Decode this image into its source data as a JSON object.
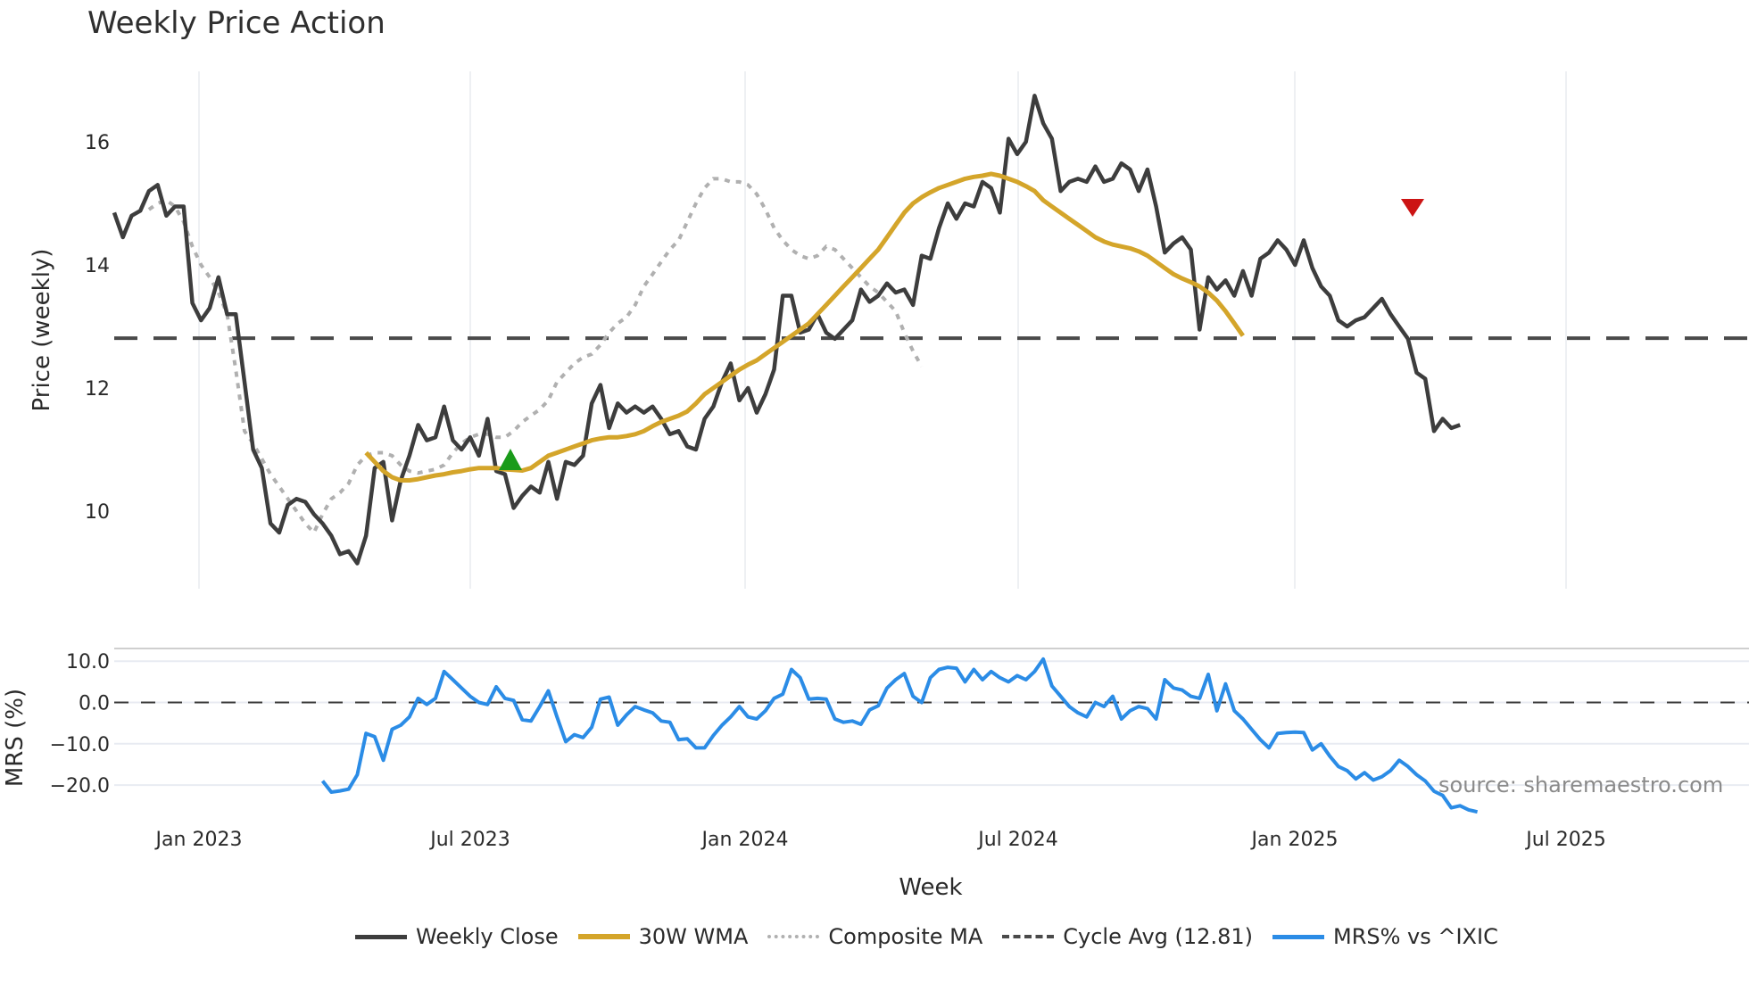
{
  "title": "Weekly Price Action",
  "source": "source: sharemaestro.com",
  "colors": {
    "close": "#3d3d3d",
    "wma": "#d4a52a",
    "composite": "#b0b0b0",
    "cycle": "#4a4a4a",
    "mrs": "#2b8ce6",
    "buy": "#1a9b1a",
    "sell": "#cc1414"
  },
  "axes": {
    "price_label": "Price (weekly)",
    "mrs_label": "MRS (%)",
    "x_label": "Week",
    "price_ticks": [
      "16",
      "14",
      "12",
      "10"
    ],
    "mrs_ticks": [
      "10.0",
      "0.0",
      "−10.0",
      "−20.0"
    ],
    "x_ticks": [
      "Jan 2023",
      "Jul 2023",
      "Jan 2024",
      "Jul 2024",
      "Jan 2025",
      "Jul 2025"
    ]
  },
  "legend": [
    {
      "label": "Weekly Close",
      "style": "solid",
      "color": "#3d3d3d"
    },
    {
      "label": "30W WMA",
      "style": "solid",
      "color": "#d4a52a"
    },
    {
      "label": "Composite MA",
      "style": "dotted",
      "color": "#b0b0b0"
    },
    {
      "label": "Cycle Avg (12.81)",
      "style": "dashed",
      "color": "#4a4a4a"
    },
    {
      "label": "MRS% vs ^IXIC",
      "style": "solid",
      "color": "#2b8ce6"
    }
  ],
  "chart_data": [
    {
      "type": "line",
      "title": "Weekly Price Action",
      "xlabel": "Week",
      "ylabel": "Price (weekly)",
      "ylim": [
        8.8,
        17.2
      ],
      "x_ticks": [
        "Jan 2023",
        "Jul 2023",
        "Jan 2024",
        "Jul 2024",
        "Jan 2025",
        "Jul 2025"
      ],
      "grid": true,
      "legend_position": "bottom",
      "series": [
        {
          "name": "Weekly Close",
          "x_start": "2022-11",
          "values": [
            14.85,
            14.45,
            14.8,
            14.88,
            15.2,
            15.3,
            14.8,
            14.95,
            14.95,
            13.38,
            13.1,
            13.3,
            13.8,
            13.2,
            13.2,
            12.1,
            11.0,
            10.7,
            9.8,
            9.65,
            10.1,
            10.2,
            10.15,
            9.95,
            9.8,
            9.6,
            9.3,
            9.35,
            9.15,
            9.6,
            10.7,
            10.8,
            9.85,
            10.5,
            10.9,
            11.4,
            11.15,
            11.2,
            11.7,
            11.15,
            11.0,
            11.2,
            10.9,
            11.5,
            10.65,
            10.6,
            10.05,
            10.25,
            10.4,
            10.3,
            10.8,
            10.2,
            10.8,
            10.75,
            10.9,
            11.75,
            12.05,
            11.35,
            11.75,
            11.6,
            11.7,
            11.6,
            11.7,
            11.5,
            11.25,
            11.3,
            11.05,
            11.0,
            11.5,
            11.7,
            12.1,
            12.4,
            11.8,
            12.0,
            11.6,
            11.9,
            12.3,
            13.5,
            13.5,
            12.9,
            12.95,
            13.2,
            12.9,
            12.8,
            12.95,
            13.1,
            13.6,
            13.4,
            13.5,
            13.7,
            13.55,
            13.6,
            13.35,
            14.15,
            14.1,
            14.6,
            15.0,
            14.75,
            15.0,
            14.95,
            15.35,
            15.25,
            14.85,
            16.05,
            15.8,
            16.0,
            16.75,
            16.3,
            16.05,
            15.2,
            15.35,
            15.4,
            15.35,
            15.6,
            15.35,
            15.4,
            15.65,
            15.55,
            15.2,
            15.55,
            14.95,
            14.2,
            14.35,
            14.45,
            14.25,
            12.95,
            13.8,
            13.6,
            13.75,
            13.5,
            13.9,
            13.5,
            14.1,
            14.2,
            14.4,
            14.25,
            14.0,
            14.4,
            13.95,
            13.65,
            13.5,
            13.1,
            13.0,
            13.1,
            13.15,
            13.3,
            13.45,
            13.2,
            13.0,
            12.8,
            12.25,
            12.15,
            11.3,
            11.5,
            11.35,
            11.4
          ]
        },
        {
          "name": "30W WMA",
          "values_start_week": 29,
          "values": [
            10.95,
            10.8,
            10.65,
            10.55,
            10.5,
            10.5,
            10.52,
            10.55,
            10.58,
            10.6,
            10.63,
            10.65,
            10.68,
            10.7,
            10.7,
            10.7,
            10.68,
            10.67,
            10.66,
            10.7,
            10.8,
            10.9,
            10.95,
            11.0,
            11.05,
            11.1,
            11.15,
            11.18,
            11.2,
            11.2,
            11.22,
            11.25,
            11.3,
            11.38,
            11.45,
            11.5,
            11.55,
            11.62,
            11.75,
            11.9,
            12.0,
            12.1,
            12.2,
            12.3,
            12.38,
            12.45,
            12.55,
            12.65,
            12.75,
            12.85,
            12.95,
            13.05,
            13.2,
            13.35,
            13.5,
            13.65,
            13.8,
            13.95,
            14.1,
            14.25,
            14.45,
            14.65,
            14.85,
            15.0,
            15.1,
            15.18,
            15.25,
            15.3,
            15.35,
            15.4,
            15.43,
            15.45,
            15.48,
            15.45,
            15.4,
            15.35,
            15.28,
            15.2,
            15.05,
            14.95,
            14.85,
            14.75,
            14.65,
            14.55,
            14.45,
            14.38,
            14.33,
            14.3,
            14.27,
            14.22,
            14.15,
            14.05,
            13.95,
            13.85,
            13.78,
            13.72,
            13.65,
            13.55,
            13.42,
            13.25,
            13.05,
            12.85
          ]
        },
        {
          "name": "Composite MA",
          "values": [
            14.9,
            15.0,
            15.05,
            14.95,
            14.7,
            14.3,
            14.0,
            13.8,
            13.55,
            13.2,
            12.3,
            11.3,
            11.1,
            10.85,
            10.6,
            10.4,
            10.2,
            10.0,
            9.8,
            9.65,
            9.95,
            10.2,
            10.3,
            10.45,
            10.75,
            10.9,
            10.95,
            10.95,
            10.9,
            10.75,
            10.65,
            10.62,
            10.65,
            10.68,
            10.75,
            10.95,
            11.1,
            11.2,
            11.25,
            11.25,
            11.2,
            11.2,
            11.3,
            11.45,
            11.55,
            11.65,
            11.8,
            12.1,
            12.25,
            12.4,
            12.5,
            12.55,
            12.7,
            12.9,
            13.05,
            13.15,
            13.35,
            13.65,
            13.85,
            14.05,
            14.25,
            14.4,
            14.7,
            15.0,
            15.25,
            15.4,
            15.4,
            15.35,
            15.35,
            15.3,
            15.15,
            14.9,
            14.6,
            14.4,
            14.25,
            14.15,
            14.1,
            14.15,
            14.3,
            14.25,
            14.1,
            13.95,
            13.8,
            13.65,
            13.55,
            13.4,
            13.25,
            12.9,
            12.6,
            12.35
          ]
        },
        {
          "name": "Cycle Avg (12.81)",
          "values": [
            12.81
          ]
        }
      ],
      "markers": [
        {
          "type": "buy",
          "shape": "triangle-up",
          "x": "2023-08",
          "y": 10.8,
          "color": "#1a9b1a"
        },
        {
          "type": "sell",
          "shape": "triangle-down",
          "x": "2025-04",
          "y": 14.9,
          "color": "#cc1414"
        }
      ]
    },
    {
      "type": "line",
      "ylabel": "MRS (%)",
      "ylim": [
        -26,
        13
      ],
      "y_ticks": [
        10,
        0,
        -10,
        -20
      ],
      "series": [
        {
          "name": "MRS% vs ^IXIC",
          "x_start": "2023-05",
          "values": [
            -19.0,
            -21.7,
            -21.4,
            -21.0,
            -17.5,
            -7.5,
            -8.3,
            -14.0,
            -6.5,
            -5.5,
            -3.5,
            1.0,
            -0.5,
            1.0,
            7.5,
            5.5,
            3.5,
            1.5,
            0.0,
            -0.5,
            3.8,
            1.0,
            0.5,
            -4.2,
            -4.5,
            -1.0,
            2.8,
            -3.5,
            -9.5,
            -7.8,
            -8.5,
            -6.0,
            0.8,
            1.3,
            -5.5,
            -3.0,
            -1.0,
            -1.8,
            -2.5,
            -4.5,
            -4.8,
            -9.0,
            -8.8,
            -11.0,
            -11.0,
            -8.0,
            -5.5,
            -3.5,
            -1.0,
            -3.5,
            -4.0,
            -2.0,
            1.0,
            2.0,
            8.0,
            6.0,
            0.8,
            1.0,
            0.8,
            -4.0,
            -4.8,
            -4.5,
            -5.3,
            -1.8,
            -0.8,
            3.5,
            5.5,
            7.0,
            1.5,
            0.0,
            6.0,
            8.0,
            8.5,
            8.3,
            5.0,
            8.0,
            5.5,
            7.5,
            6.0,
            5.0,
            6.5,
            5.5,
            7.5,
            10.5,
            4.0,
            1.5,
            -1.0,
            -2.5,
            -3.5,
            0.0,
            -1.0,
            1.5,
            -4.0,
            -2.0,
            -1.0,
            -1.5,
            -4.0,
            5.5,
            3.5,
            3.0,
            1.5,
            1.0,
            6.8,
            -2.0,
            4.5,
            -2.0,
            -4.0,
            -6.5,
            -9.0,
            -11.0,
            -7.5,
            -7.3,
            -7.2,
            -7.3,
            -11.5,
            -10.0,
            -13.0,
            -15.5,
            -16.5,
            -18.5,
            -17.0,
            -18.8,
            -18.0,
            -16.5,
            -14.0,
            -15.5,
            -17.5,
            -19.0,
            -21.5,
            -22.5,
            -25.5,
            -25.0,
            -26.0,
            -26.5
          ]
        },
        {
          "name": "Zero line",
          "values": [
            0
          ]
        }
      ]
    }
  ]
}
